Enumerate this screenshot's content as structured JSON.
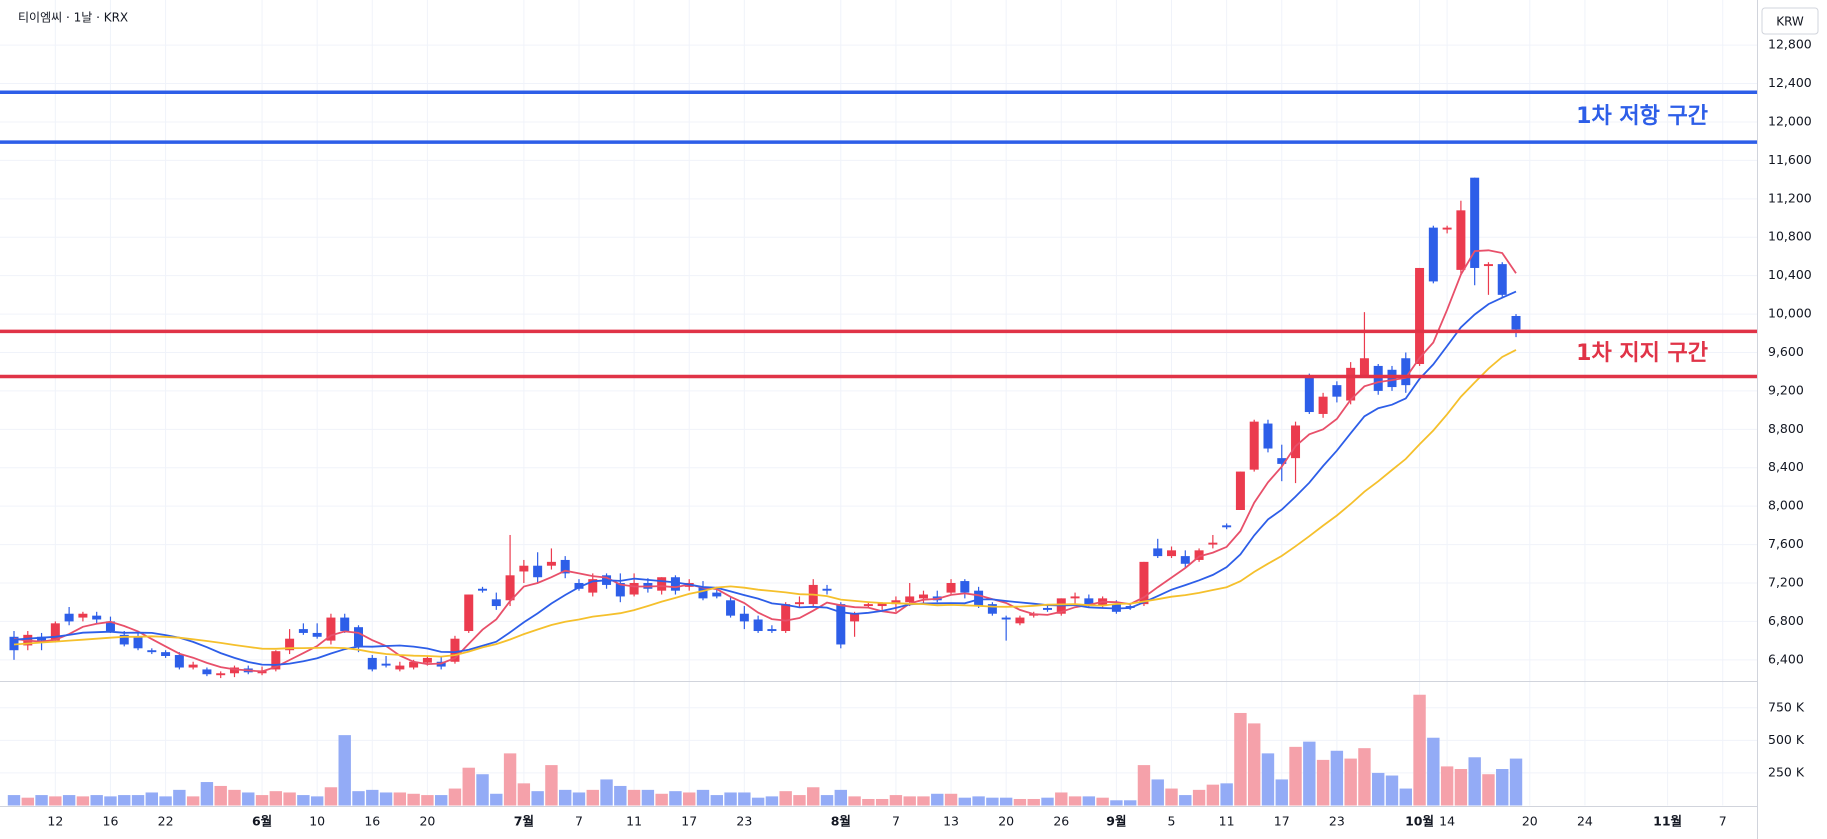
{
  "chart_data": {
    "type": "candlestick",
    "title": "티이엠씨 · 1날 · KRX",
    "currency": "KRW",
    "categories": [
      null,
      null,
      null,
      "12",
      null,
      null,
      null,
      "16",
      null,
      null,
      null,
      "22",
      null,
      null,
      null,
      null,
      null,
      null,
      "6월",
      null,
      null,
      null,
      "10",
      null,
      null,
      null,
      "16",
      null,
      null,
      null,
      "20",
      null,
      null,
      null,
      null,
      null,
      null,
      "7월",
      null,
      null,
      null,
      "7",
      null,
      null,
      null,
      "11",
      null,
      null,
      null,
      "17",
      null,
      null,
      null,
      "23",
      null,
      null,
      null,
      null,
      null,
      null,
      "8월",
      null,
      null,
      null,
      "7",
      null,
      null,
      null,
      "13",
      null,
      null,
      null,
      "20",
      null,
      null,
      null,
      "26",
      null,
      null,
      null,
      "9월",
      null,
      null,
      null,
      "5",
      null,
      null,
      null,
      "11",
      null,
      null,
      null,
      "17",
      null,
      null,
      null,
      "23",
      null,
      null,
      null,
      null,
      null,
      "10월",
      null,
      "14",
      null,
      null,
      null,
      null,
      null,
      "20",
      null,
      null,
      null,
      "24",
      null,
      null,
      null,
      null,
      null,
      "11월",
      null,
      null,
      null,
      "7"
    ],
    "month_labels": [
      "6월",
      "7월",
      "8월",
      "9월",
      "10월",
      "11월"
    ],
    "open": [
      6640,
      6550,
      6640,
      6600,
      6880,
      6840,
      6860,
      6800,
      6660,
      6640,
      6500,
      6480,
      6450,
      6320,
      6300,
      6240,
      6260,
      6310,
      6260,
      6300,
      6500,
      6720,
      6680,
      6600,
      6840,
      6740,
      6420,
      6360,
      6300,
      6320,
      6370,
      6380,
      6380,
      6700,
      7140,
      7030,
      7020,
      7320,
      7380,
      7380,
      7440,
      7200,
      7100,
      7280,
      7200,
      7080,
      7200,
      7120,
      7260,
      7160,
      7160,
      7100,
      7020,
      6880,
      6820,
      6720,
      6700,
      6980,
      6980,
      7140,
      6980,
      6800,
      6960,
      6960,
      6980,
      7000,
      7040,
      7060,
      7100,
      7220,
      7120,
      6980,
      6840,
      6780,
      6860,
      6940,
      6880,
      7040,
      7040,
      6960,
      6980,
      6960,
      6980,
      7560,
      7480,
      7480,
      7440,
      7600,
      7800,
      7960,
      8380,
      8860,
      8500,
      8500,
      9360,
      8960,
      9260,
      9100,
      9360,
      9460,
      9420,
      9540,
      9480,
      10900,
      10880,
      10460,
      11420,
      10500,
      10520,
      9980,
      null,
      null,
      null,
      null,
      null,
      null,
      null,
      null,
      null,
      null,
      null,
      null,
      null,
      null,
      null
    ],
    "high": [
      6700,
      6700,
      6680,
      6800,
      6950,
      6900,
      6900,
      6850,
      6700,
      6680,
      6520,
      6500,
      6480,
      6380,
      6320,
      6280,
      6340,
      6340,
      6330,
      6500,
      6720,
      6780,
      6780,
      6880,
      6880,
      6760,
      6450,
      6440,
      6380,
      6400,
      6440,
      6440,
      6650,
      7080,
      7160,
      7100,
      7700,
      7440,
      7520,
      7560,
      7480,
      7240,
      7300,
      7300,
      7300,
      7300,
      7250,
      7260,
      7280,
      7240,
      7220,
      7160,
      7060,
      6960,
      6860,
      6760,
      7000,
      7060,
      7240,
      7180,
      7000,
      6900,
      7000,
      7000,
      7060,
      7200,
      7120,
      7120,
      7240,
      7240,
      7160,
      7000,
      6860,
      6860,
      6900,
      6980,
      7040,
      7100,
      7080,
      7060,
      7020,
      6980,
      7420,
      7660,
      7580,
      7540,
      7560,
      7700,
      7820,
      8360,
      8900,
      8900,
      8640,
      8880,
      9380,
      9180,
      9300,
      9500,
      10020,
      9480,
      9460,
      9600,
      10480,
      10920,
      10920,
      11180,
      11420,
      10540,
      10540,
      10000,
      null,
      null,
      null,
      null,
      null,
      null,
      null,
      null,
      null,
      null,
      null,
      null,
      null,
      null,
      null
    ],
    "low": [
      6400,
      6500,
      6500,
      6580,
      6760,
      6800,
      6780,
      6680,
      6540,
      6500,
      6460,
      6420,
      6300,
      6300,
      6230,
      6210,
      6220,
      6250,
      6240,
      6280,
      6460,
      6660,
      6620,
      6560,
      6680,
      6480,
      6280,
      6320,
      6280,
      6300,
      6340,
      6300,
      6360,
      6680,
      7100,
      6920,
      6960,
      7200,
      7200,
      7340,
      7250,
      7120,
      7060,
      7140,
      7000,
      7060,
      7100,
      7080,
      7080,
      7120,
      7020,
      7040,
      6840,
      6720,
      6680,
      6680,
      6680,
      6940,
      6960,
      7080,
      6520,
      6640,
      6940,
      6920,
      6900,
      6960,
      6980,
      7000,
      7080,
      7040,
      6940,
      6860,
      6600,
      6760,
      6840,
      6900,
      6860,
      6980,
      6940,
      6940,
      6880,
      6920,
      6960,
      7460,
      7460,
      7360,
      7420,
      7560,
      7760,
      7960,
      8360,
      8560,
      8260,
      8240,
      8960,
      8920,
      9080,
      9060,
      9340,
      9160,
      9200,
      9180,
      9460,
      10320,
      10840,
      10420,
      10300,
      10200,
      10180,
      9760,
      null,
      null,
      null,
      null,
      null,
      null,
      null,
      null,
      null,
      null,
      null,
      null,
      null,
      null,
      null
    ],
    "close": [
      6500,
      6660,
      6600,
      6780,
      6800,
      6880,
      6820,
      6700,
      6560,
      6520,
      6480,
      6440,
      6320,
      6350,
      6250,
      6260,
      6320,
      6270,
      6290,
      6490,
      6620,
      6680,
      6640,
      6840,
      6700,
      6540,
      6300,
      6340,
      6340,
      6380,
      6420,
      6330,
      6620,
      7080,
      7120,
      6960,
      7280,
      7380,
      7260,
      7420,
      7300,
      7140,
      7240,
      7180,
      7060,
      7200,
      7140,
      7260,
      7120,
      7200,
      7040,
      7060,
      6860,
      6800,
      6700,
      6700,
      6980,
      7000,
      7180,
      7120,
      6560,
      6880,
      6980,
      6990,
      7020,
      7060,
      7080,
      7020,
      7200,
      7100,
      6960,
      6880,
      6820,
      6840,
      6880,
      6920,
      7040,
      7060,
      6960,
      7040,
      6900,
      6940,
      7420,
      7480,
      7540,
      7400,
      7540,
      7620,
      7780,
      8360,
      8880,
      8600,
      8440,
      8840,
      8980,
      9140,
      9140,
      9440,
      9540,
      9200,
      9240,
      9260,
      10480,
      10340,
      10900,
      11080,
      10480,
      10520,
      10200,
      9840,
      null,
      null,
      null,
      null,
      null,
      null,
      null,
      null,
      null,
      null,
      null,
      null,
      null,
      null,
      null
    ],
    "volume": [
      80000,
      60000,
      80000,
      70000,
      80000,
      70000,
      80000,
      70000,
      80000,
      80000,
      100000,
      70000,
      120000,
      70000,
      180000,
      150000,
      120000,
      100000,
      80000,
      110000,
      100000,
      80000,
      70000,
      140000,
      540000,
      110000,
      120000,
      100000,
      100000,
      90000,
      80000,
      80000,
      130000,
      290000,
      240000,
      90000,
      400000,
      170000,
      110000,
      310000,
      120000,
      100000,
      120000,
      200000,
      150000,
      120000,
      120000,
      90000,
      110000,
      100000,
      120000,
      80000,
      100000,
      100000,
      60000,
      70000,
      110000,
      80000,
      140000,
      80000,
      120000,
      70000,
      50000,
      50000,
      80000,
      70000,
      70000,
      90000,
      90000,
      60000,
      70000,
      60000,
      60000,
      50000,
      50000,
      60000,
      100000,
      70000,
      70000,
      60000,
      40000,
      40000,
      310000,
      200000,
      130000,
      80000,
      120000,
      160000,
      170000,
      710000,
      630000,
      400000,
      200000,
      450000,
      490000,
      350000,
      420000,
      360000,
      440000,
      250000,
      230000,
      130000,
      850000,
      520000,
      300000,
      280000,
      370000,
      240000,
      280000,
      360000,
      null,
      null,
      null,
      null,
      null,
      null,
      null,
      null,
      null,
      null,
      null,
      null,
      null,
      null,
      null
    ],
    "up_color": "#eb3b4e",
    "down_color": "#2d5ee8",
    "volume_up_color": "#f5a1aa",
    "volume_down_color": "#93abf6",
    "ma": [
      {
        "color": "#e8506a",
        "values": [
          6620,
          6600,
          6590,
          6610,
          6668,
          6744,
          6776,
          6796,
          6752,
          6696,
          6616,
          6540,
          6464,
          6422,
          6368,
          6324,
          6300,
          6290,
          6278,
          6326,
          6398,
          6470,
          6544,
          6654,
          6696,
          6680,
          6604,
          6544,
          6444,
          6380,
          6356,
          6362,
          6418,
          6566,
          6714,
          6822,
          7012,
          7164,
          7200,
          7260,
          7328,
          7300,
          7272,
          7256,
          7184,
          7164,
          7164,
          7168,
          7156,
          7184,
          7152,
          7136,
          7056,
          6992,
          6892,
          6824,
          6808,
          6836,
          6912,
          6996,
          6968,
          6948,
          6944,
          6906,
          6886,
          6986,
          7026,
          7034,
          7076,
          7092,
          7072,
          7032,
          6992,
          6920,
          6876,
          6868,
          6900,
          6948,
          6972,
          7004,
          7000,
          6980,
          7052,
          7156,
          7256,
          7356,
          7476,
          7516,
          7576,
          7740,
          8036,
          8248,
          8412,
          8624,
          8748,
          8800,
          8908,
          9108,
          9248,
          9292,
          9312,
          9336,
          9544,
          9704,
          10044,
          10412,
          10656,
          10664,
          10636,
          10424,
          null,
          null,
          null,
          null,
          null,
          null,
          null,
          null,
          null,
          null,
          null,
          null,
          null,
          null,
          null
        ]
      },
      {
        "color": "#2d5ee8",
        "values": [
          6610,
          6620,
          6630,
          6640,
          6660,
          6682,
          6688,
          6693,
          6681,
          6682,
          6680,
          6658,
          6630,
          6587,
          6532,
          6470,
          6420,
          6377,
          6350,
          6347,
          6361,
          6385,
          6417,
          6466,
          6511,
          6539,
          6537,
          6544,
          6549,
          6538,
          6518,
          6483,
          6481,
          6505,
          6547,
          6589,
          6687,
          6791,
          6883,
          6987,
          7075,
          7156,
          7218,
          7228,
          7222,
          7246,
          7232,
          7220,
          7206,
          7184,
          7158,
          7150,
          7112,
          7074,
          7038,
          6988,
          6972,
          6946,
          6952,
          6944,
          6896,
          6878,
          6890,
          6909,
          6941,
          6977,
          6987,
          6989,
          6991,
          6989,
          7029,
          7029,
          7013,
          6998,
          6984,
          6970,
          6966,
          6970,
          6946,
          6940,
          6934,
          6940,
          7000,
          7064,
          7130,
          7178,
          7228,
          7284,
          7366,
          7498,
          7696,
          7862,
          7964,
          8100,
          8244,
          8418,
          8578,
          8760,
          8936,
          9020,
          9056,
          9122,
          9326,
          9476,
          9668,
          9862,
          9996,
          10104,
          10170,
          10234,
          null,
          null,
          null,
          null,
          null,
          null,
          null,
          null,
          null,
          null,
          null,
          null,
          null,
          null,
          null
        ]
      },
      {
        "color": "#f5c02c",
        "values": [
          6560,
          6570,
          6580,
          6590,
          6600,
          6610,
          6620,
          6630,
          6640,
          6640,
          6645,
          6639,
          6630,
          6614,
          6596,
          6576,
          6554,
          6535,
          6516,
          6515,
          6521,
          6522,
          6524,
          6527,
          6522,
          6505,
          6479,
          6461,
          6450,
          6443,
          6440,
          6434,
          6449,
          6486,
          6529,
          6564,
          6612,
          6668,
          6716,
          6763,
          6797,
          6820,
          6850,
          6867,
          6885,
          6918,
          6960,
          7006,
          7045,
          7086,
          7117,
          7153,
          7165,
          7151,
          7130,
          7117,
          7102,
          7083,
          7079,
          7064,
          7027,
          7014,
          7001,
          6992,
          6990,
          6983,
          6980,
          6968,
          6972,
          6967,
          6963,
          6954,
          6952,
          6954,
          6963,
          6974,
          6977,
          6980,
          6969,
          6965,
          6982,
          6985,
          7007,
          7031,
          7057,
          7074,
          7097,
          7127,
          7156,
          7219,
          7315,
          7401,
          7482,
          7582,
          7687,
          7798,
          7903,
          8022,
          8151,
          8259,
          8376,
          8492,
          8645,
          8788,
          8956,
          9140,
          9287,
          9432,
          9553,
          9627,
          null,
          null,
          null,
          null,
          null,
          null,
          null,
          null,
          null,
          null,
          null,
          null,
          null,
          null,
          null
        ]
      }
    ],
    "zones": [
      {
        "label": "1차 저항 구간",
        "color": "#2d5ee8",
        "lines": [
          12310,
          11790
        ]
      },
      {
        "label": "1차 지지 구간",
        "color": "#e03347",
        "lines": [
          9820,
          9350
        ]
      }
    ],
    "ylim": [
      6190,
      13270
    ],
    "yticks": [
      {
        "value": 6400,
        "label": "6,400"
      },
      {
        "value": 6800,
        "label": "6,800"
      },
      {
        "value": 7200,
        "label": "7,200"
      },
      {
        "value": 7600,
        "label": "7,600"
      },
      {
        "value": 8000,
        "label": "8,000"
      },
      {
        "value": 8400,
        "label": "8,400"
      },
      {
        "value": 8800,
        "label": "8,800"
      },
      {
        "value": 9200,
        "label": "9,200"
      },
      {
        "value": 9600,
        "label": "9,600"
      },
      {
        "value": 10000,
        "label": "10,000"
      },
      {
        "value": 10400,
        "label": "10,400"
      },
      {
        "value": 10800,
        "label": "10,800"
      },
      {
        "value": 11200,
        "label": "11,200"
      },
      {
        "value": 11600,
        "label": "11,600"
      },
      {
        "value": 12000,
        "label": "12,000"
      },
      {
        "value": 12400,
        "label": "12,400"
      },
      {
        "value": 12800,
        "label": "12,800"
      }
    ],
    "volume_ylim": [
      0,
      940000
    ],
    "volume_yticks": [
      {
        "value": 250000,
        "label": "250 K"
      },
      {
        "value": 500000,
        "label": "500 K"
      },
      {
        "value": 750000,
        "label": "750 K"
      }
    ],
    "grid": true
  }
}
